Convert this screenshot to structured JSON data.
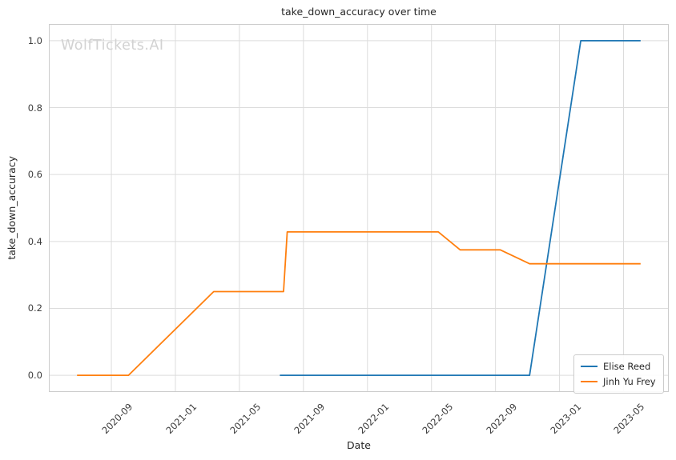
{
  "watermark": "WolfTickets.AI",
  "chart_data": {
    "type": "line",
    "title": "take_down_accuracy over time",
    "xlabel": "Date",
    "ylabel": "take_down_accuracy",
    "x_ticks": [
      "2020-09",
      "2021-01",
      "2021-05",
      "2021-09",
      "2022-01",
      "2022-05",
      "2022-09",
      "2023-01",
      "2023-05"
    ],
    "y_ticks": [
      0.0,
      0.2,
      0.4,
      0.6,
      0.8,
      1.0
    ],
    "ylim": [
      -0.05,
      1.05
    ],
    "x_pad_frac": 0.05,
    "grid": true,
    "legend_position": "lower right",
    "colors": {
      "grid": "#dcdcdc",
      "spine": "#cccccc"
    },
    "series": [
      {
        "name": "Elise Reed",
        "color": "#1f77b4",
        "points": [
          {
            "date": "2021-07-17",
            "value": 0.0
          },
          {
            "date": "2022-11-05",
            "value": 0.0
          },
          {
            "date": "2023-02-11",
            "value": 1.0
          },
          {
            "date": "2023-06-03",
            "value": 1.0
          }
        ]
      },
      {
        "name": "Jinh Yu Frey",
        "color": "#ff7f0e",
        "points": [
          {
            "date": "2020-06-27",
            "value": 0.0
          },
          {
            "date": "2020-10-03",
            "value": 0.0
          },
          {
            "date": "2021-03-13",
            "value": 0.25
          },
          {
            "date": "2021-07-24",
            "value": 0.25
          },
          {
            "date": "2021-07-31",
            "value": 0.4286
          },
          {
            "date": "2022-05-14",
            "value": 0.4286
          },
          {
            "date": "2022-06-25",
            "value": 0.375
          },
          {
            "date": "2022-09-10",
            "value": 0.375
          },
          {
            "date": "2022-11-05",
            "value": 0.3333
          },
          {
            "date": "2023-06-03",
            "value": 0.3333
          }
        ]
      }
    ]
  }
}
